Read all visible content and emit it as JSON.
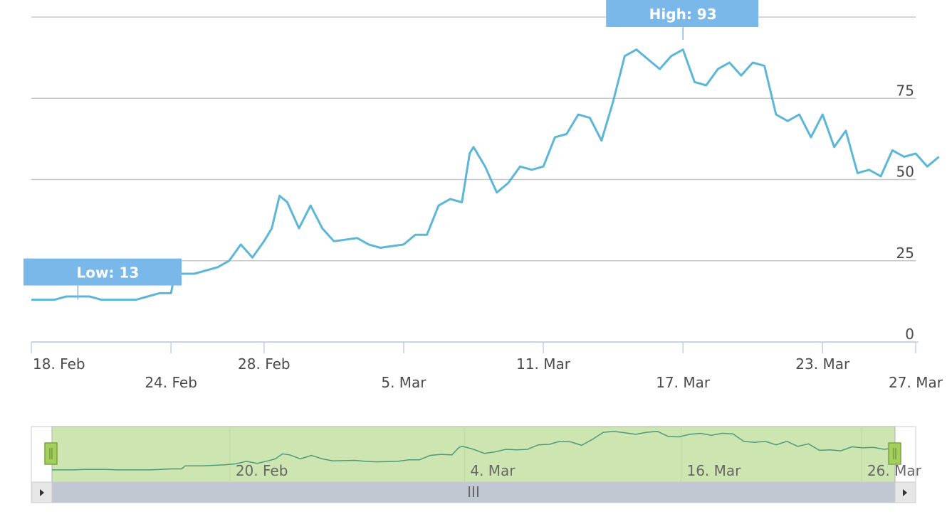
{
  "chart_data": {
    "type": "line",
    "title": "",
    "xlabel": "",
    "ylabel": "",
    "ylim": [
      0,
      100
    ],
    "y_ticks": [
      "0",
      "25",
      "50",
      "75"
    ],
    "x_ticks": [
      {
        "label": "18. Feb",
        "date": "2024-02-18",
        "row": 1
      },
      {
        "label": "24. Feb",
        "date": "2024-02-24",
        "row": 2
      },
      {
        "label": "28. Feb",
        "date": "2024-02-28",
        "row": 1
      },
      {
        "label": "5. Mar",
        "date": "2024-03-05",
        "row": 2
      },
      {
        "label": "11. Mar",
        "date": "2024-03-11",
        "row": 1
      },
      {
        "label": "17. Mar",
        "date": "2024-03-17",
        "row": 2
      },
      {
        "label": "23. Mar",
        "date": "2024-03-23",
        "row": 1
      },
      {
        "label": "27. Mar",
        "date": "2024-03-27",
        "row": 2
      }
    ],
    "x_range": [
      "2024-02-18",
      "2024-03-27"
    ],
    "series": [
      {
        "color": "#5cb6d8",
        "points": [
          [
            "2024-02-18",
            13
          ],
          [
            "2024-02-19",
            13
          ],
          [
            "2024-02-19T12:00",
            14
          ],
          [
            "2024-02-20",
            14
          ],
          [
            "2024-02-20T12:00",
            14
          ],
          [
            "2024-02-21",
            13
          ],
          [
            "2024-02-22",
            13
          ],
          [
            "2024-02-22T12:00",
            13
          ],
          [
            "2024-02-23",
            14
          ],
          [
            "2024-02-23T12:00",
            15
          ],
          [
            "2024-02-24",
            15
          ],
          [
            "2024-02-24T04:00",
            21
          ],
          [
            "2024-02-25",
            21
          ],
          [
            "2024-02-25T12:00",
            22
          ],
          [
            "2024-02-26",
            23
          ],
          [
            "2024-02-26T12:00",
            25
          ],
          [
            "2024-02-27",
            30
          ],
          [
            "2024-02-27T12:00",
            26
          ],
          [
            "2024-02-28",
            31
          ],
          [
            "2024-02-28T08:00",
            35
          ],
          [
            "2024-02-28T16:00",
            45
          ],
          [
            "2024-02-29",
            43
          ],
          [
            "2024-02-29T12:00",
            35
          ],
          [
            "2024-03-01",
            42
          ],
          [
            "2024-03-01T12:00",
            35
          ],
          [
            "2024-03-02",
            31
          ],
          [
            "2024-03-03",
            32
          ],
          [
            "2024-03-03T12:00",
            30
          ],
          [
            "2024-03-04",
            29
          ],
          [
            "2024-03-05",
            30
          ],
          [
            "2024-03-05T12:00",
            33
          ],
          [
            "2024-03-06",
            33
          ],
          [
            "2024-03-06T12:00",
            42
          ],
          [
            "2024-03-07",
            44
          ],
          [
            "2024-03-07T12:00",
            43
          ],
          [
            "2024-03-07T20:00",
            58
          ],
          [
            "2024-03-08",
            60
          ],
          [
            "2024-03-08T12:00",
            54
          ],
          [
            "2024-03-09",
            46
          ],
          [
            "2024-03-09T12:00",
            49
          ],
          [
            "2024-03-10",
            54
          ],
          [
            "2024-03-10T12:00",
            53
          ],
          [
            "2024-03-11",
            54
          ],
          [
            "2024-03-11T12:00",
            63
          ],
          [
            "2024-03-12",
            64
          ],
          [
            "2024-03-12T12:00",
            70
          ],
          [
            "2024-03-13",
            69
          ],
          [
            "2024-03-13T12:00",
            62
          ],
          [
            "2024-03-14",
            74
          ],
          [
            "2024-03-14T12:00",
            88
          ],
          [
            "2024-03-15",
            90
          ],
          [
            "2024-03-15T12:00",
            87
          ],
          [
            "2024-03-16",
            84
          ],
          [
            "2024-03-16T12:00",
            88
          ],
          [
            "2024-03-17",
            90
          ],
          [
            "2024-03-17T12:00",
            80
          ],
          [
            "2024-03-18",
            79
          ],
          [
            "2024-03-18T12:00",
            84
          ],
          [
            "2024-03-19",
            86
          ],
          [
            "2024-03-19T12:00",
            82
          ],
          [
            "2024-03-20",
            86
          ],
          [
            "2024-03-20T12:00",
            85
          ],
          [
            "2024-03-21",
            70
          ],
          [
            "2024-03-21T12:00",
            68
          ],
          [
            "2024-03-22",
            70
          ],
          [
            "2024-03-22T12:00",
            63
          ],
          [
            "2024-03-23",
            70
          ],
          [
            "2024-03-23T12:00",
            60
          ],
          [
            "2024-03-24",
            65
          ],
          [
            "2024-03-24T12:00",
            52
          ],
          [
            "2024-03-25",
            53
          ],
          [
            "2024-03-25T12:00",
            51
          ],
          [
            "2024-03-26",
            59
          ],
          [
            "2024-03-26T12:00",
            57
          ],
          [
            "2024-03-27",
            58
          ],
          [
            "2024-03-27T12:00",
            54
          ],
          [
            "2024-03-28",
            57
          ]
        ]
      }
    ],
    "flags": [
      {
        "label": "Low: 13",
        "date": "2024-02-20",
        "value": 13
      },
      {
        "label": "High: 93",
        "date": "2024-03-17",
        "value": 93
      }
    ],
    "navigator": {
      "labels": [
        {
          "label": "20. Feb",
          "date": "2024-02-20"
        },
        {
          "label": "4. Mar",
          "date": "2024-03-04"
        },
        {
          "label": "16. Mar",
          "date": "2024-03-16"
        },
        {
          "label": "26. Mar",
          "date": "2024-03-26"
        }
      ],
      "range": [
        "2024-02-09",
        "2024-03-29"
      ],
      "selected": [
        "2024-02-09",
        "2024-03-28"
      ],
      "fill_color": "#cde5b0",
      "handle_color": "#a3d05d",
      "scrollbar_color": "#c2c8d2",
      "scroll_grip": "III"
    },
    "grid": true
  }
}
